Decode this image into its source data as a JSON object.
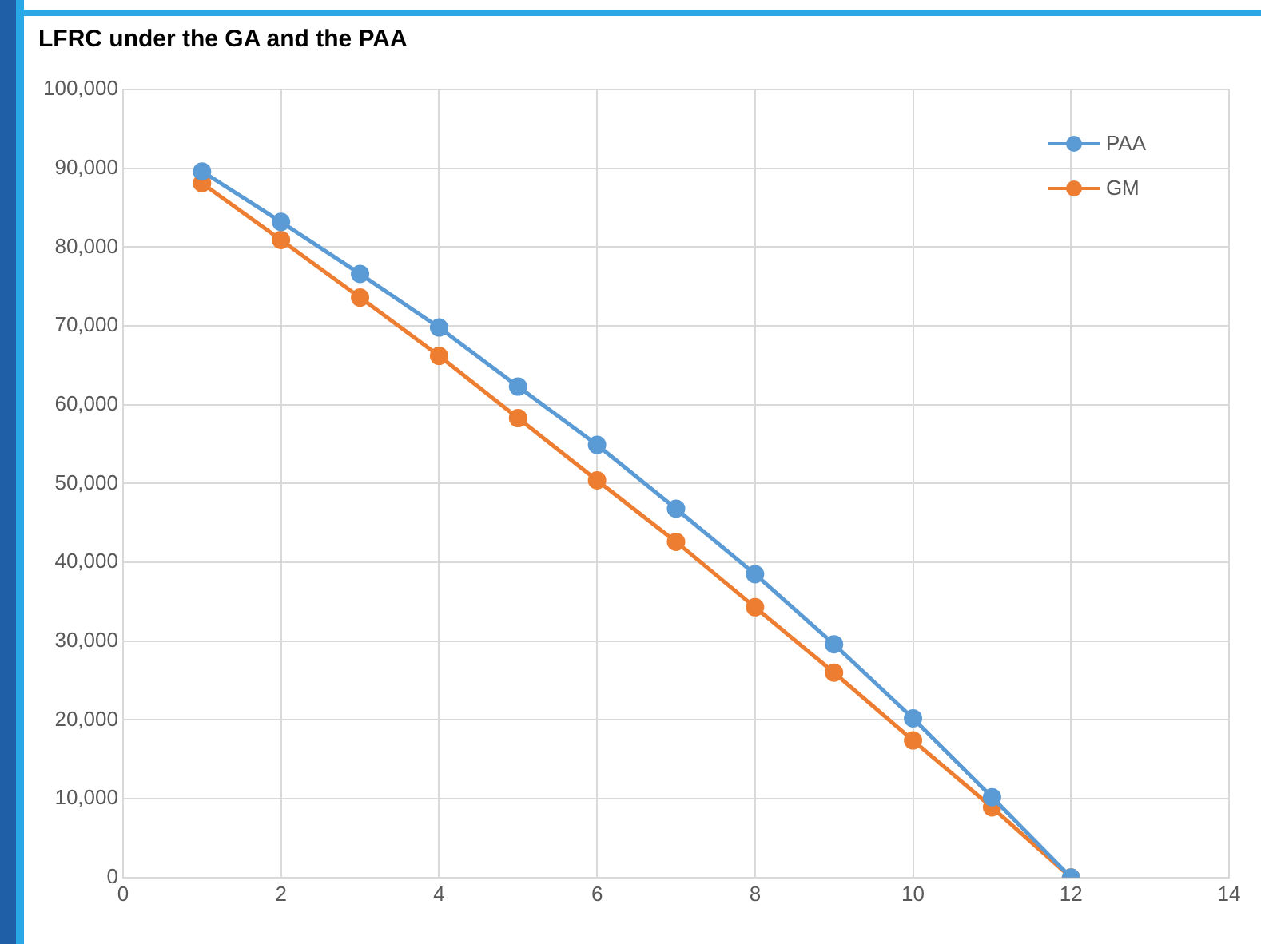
{
  "chart_data": {
    "type": "line",
    "title": "LFRC under the GA and the PAA",
    "x": [
      1,
      2,
      3,
      4,
      5,
      6,
      7,
      8,
      9,
      10,
      11,
      12
    ],
    "series": [
      {
        "name": "PAA",
        "color": "#5b9bd5",
        "values": [
          89600,
          83200,
          76600,
          69800,
          62300,
          54900,
          46800,
          38500,
          29600,
          20200,
          10200,
          0
        ]
      },
      {
        "name": "GM",
        "color": "#ed7d31",
        "values": [
          88100,
          80900,
          73600,
          66200,
          58300,
          50400,
          42600,
          34300,
          26000,
          17400,
          8900,
          0
        ]
      }
    ],
    "xlim": [
      0,
      14
    ],
    "xticks": [
      0,
      2,
      4,
      6,
      8,
      10,
      12,
      14
    ],
    "ylim": [
      0,
      100000
    ],
    "yticks": [
      {
        "value": 0,
        "label": "0"
      },
      {
        "value": 10000,
        "label": "10,000"
      },
      {
        "value": 20000,
        "label": "20,000"
      },
      {
        "value": 30000,
        "label": "30,000"
      },
      {
        "value": 40000,
        "label": "40,000"
      },
      {
        "value": 50000,
        "label": "50,000"
      },
      {
        "value": 60000,
        "label": "60,000"
      },
      {
        "value": 70000,
        "label": "70,000"
      },
      {
        "value": 80000,
        "label": "80,000"
      },
      {
        "value": 90000,
        "label": "90,000"
      },
      {
        "value": 100000,
        "label": "100,000"
      }
    ],
    "grid": true,
    "legend": "top right",
    "marker": "circle",
    "line_style": "solid"
  }
}
